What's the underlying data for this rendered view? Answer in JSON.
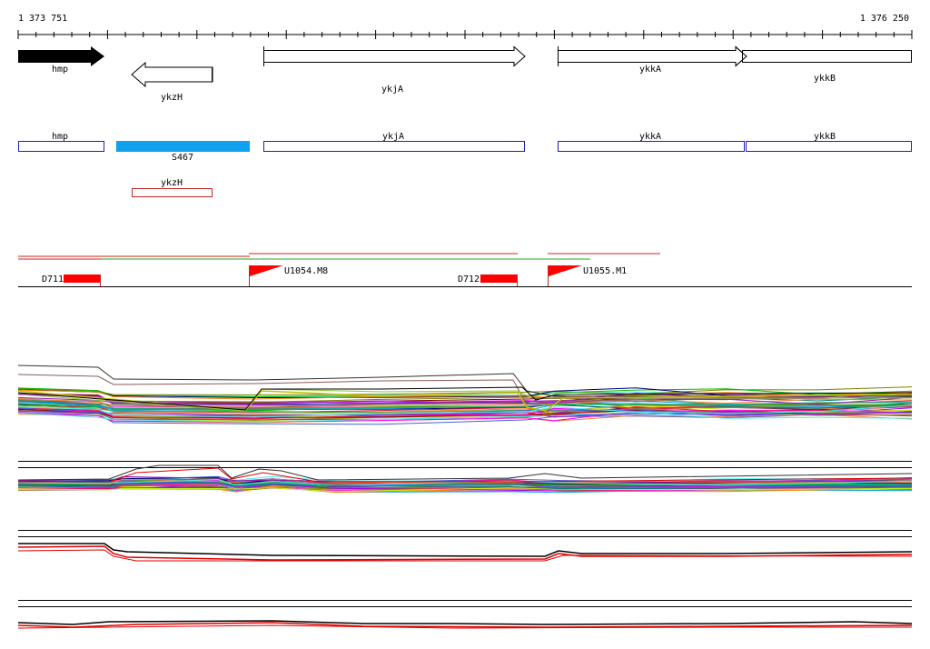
{
  "coordinates": {
    "start_label": "1 373 751",
    "end_label": "1 376 250"
  },
  "colors": {
    "gene_forward": "#000000",
    "feature_box": "#1f1fb4",
    "feature_box_red": "#cc0000",
    "feature_filled": "#11a0ee",
    "marker_red": "#ff0000",
    "track_green": "#22aa22"
  },
  "genes": [
    {
      "label": "hmp"
    },
    {
      "label": "ykzH"
    },
    {
      "label": "ykjA"
    },
    {
      "label": "ykkA"
    },
    {
      "label": "ykkB"
    }
  ],
  "features": [
    {
      "label": "hmp"
    },
    {
      "label": "S467"
    },
    {
      "label": "ykjA"
    },
    {
      "label": "ykkA"
    },
    {
      "label": "ykkB"
    },
    {
      "label": "ykzH"
    }
  ],
  "markers": [
    {
      "label": "D711",
      "kind": "block"
    },
    {
      "label": "U1054.M8",
      "kind": "flag"
    },
    {
      "label": "D712",
      "kind": "block"
    },
    {
      "label": "U1055.M1",
      "kind": "flag"
    }
  ],
  "expression_panels": [
    {
      "name": "panel-1"
    },
    {
      "name": "panel-2"
    },
    {
      "name": "panel-3"
    },
    {
      "name": "panel-4"
    }
  ]
}
